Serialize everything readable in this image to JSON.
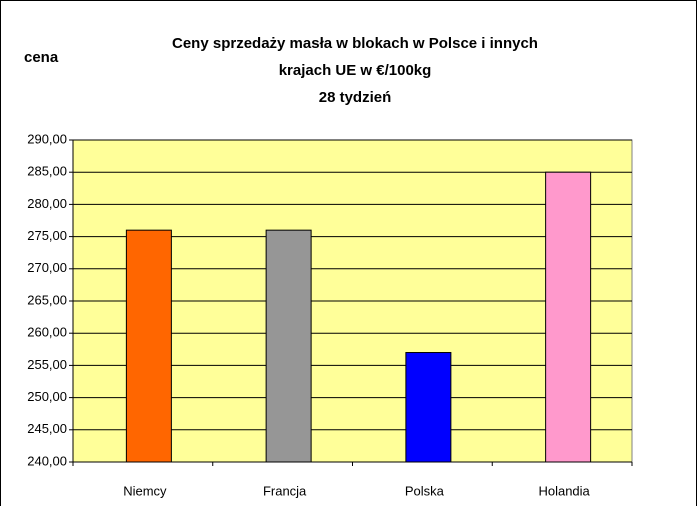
{
  "chart_data": {
    "type": "bar",
    "title": [
      "Ceny sprzedaży masła w blokach w Polsce i  innych",
      "krajach UE w €/100kg",
      "28 tydzień"
    ],
    "ylabel": "cena",
    "categories": [
      "Niemcy",
      "Francja",
      "Polska",
      "Holandia"
    ],
    "values": [
      276,
      276,
      257,
      285
    ],
    "colors": [
      "#ff6600",
      "#969696",
      "#0000ff",
      "#ff99cc"
    ],
    "ylim": [
      240,
      290
    ],
    "yticks": [
      {
        "value": 240,
        "label": "240,00"
      },
      {
        "value": 245,
        "label": "245,00"
      },
      {
        "value": 250,
        "label": "250,00"
      },
      {
        "value": 255,
        "label": "255,00"
      },
      {
        "value": 260,
        "label": "260,00"
      },
      {
        "value": 265,
        "label": "265,00"
      },
      {
        "value": 270,
        "label": "270,00"
      },
      {
        "value": 275,
        "label": "275,00"
      },
      {
        "value": 280,
        "label": "280,00"
      },
      {
        "value": 285,
        "label": "285,00"
      },
      {
        "value": 290,
        "label": "290,00"
      }
    ],
    "grid": true,
    "plot_background": "#ffff99"
  }
}
